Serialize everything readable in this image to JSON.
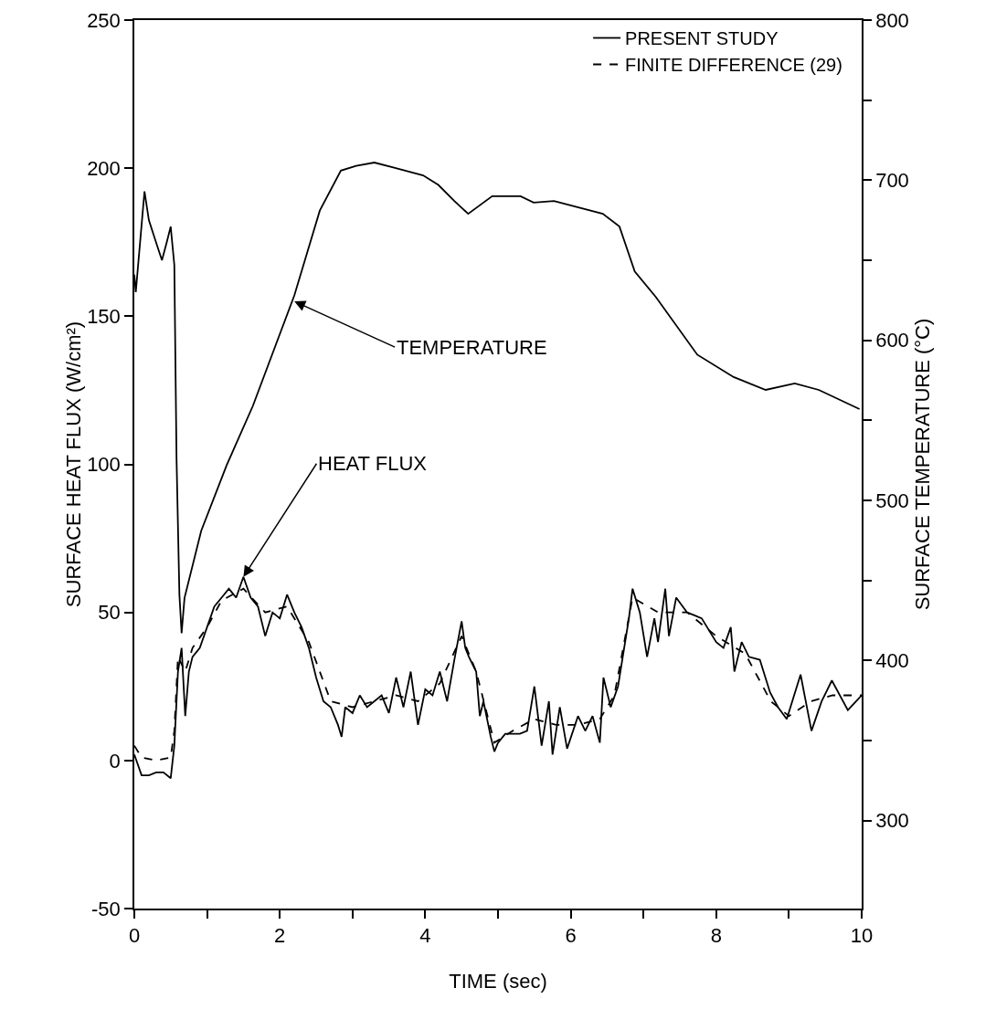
{
  "chart_data": {
    "type": "line",
    "xlabel": "TIME (sec)",
    "ylabel": "SURFACE HEAT FLUX (W/cm²)",
    "y2label": "SURFACE TEMPERATURE (°C)",
    "xlim": [
      0,
      10
    ],
    "xticks": [
      0,
      {
        "value": 1,
        "label": null
      },
      2,
      {
        "value": 3,
        "label": null
      },
      4,
      {
        "value": 5,
        "label": null
      },
      6,
      {
        "value": 7,
        "label": null
      },
      8,
      {
        "value": 9,
        "label": null
      },
      10
    ],
    "ylim": [
      -50,
      250
    ],
    "yticks": [
      -50,
      0,
      50,
      100,
      150,
      200,
      250
    ],
    "y2lim": [
      245,
      800
    ],
    "y2ticks": [
      300,
      {
        "value": 350,
        "label": null
      },
      400,
      {
        "value": 450,
        "label": null
      },
      500,
      {
        "value": 550,
        "label": null
      },
      600,
      {
        "value": 650,
        "label": null
      },
      700,
      {
        "value": 750,
        "label": null
      },
      800
    ],
    "grid": false,
    "legend": "top right",
    "marker": "none",
    "series": [
      {
        "name": "PRESENT STUDY",
        "color": "#000000",
        "line_style": "solid",
        "x": [
          0,
          0.1,
          0.2,
          0.3,
          0.4,
          0.5,
          0.55,
          0.6,
          0.65,
          0.7,
          0.75,
          0.8,
          0.9,
          1.0,
          1.1,
          1.2,
          1.3,
          1.4,
          1.5,
          1.6,
          1.7,
          1.8,
          1.9,
          2.0,
          2.1,
          2.2,
          2.3,
          2.4,
          2.5,
          2.6,
          2.7,
          2.8,
          2.85,
          2.9,
          3.0,
          3.1,
          3.2,
          3.3,
          3.4,
          3.5,
          3.6,
          3.7,
          3.8,
          3.9,
          4.0,
          4.1,
          4.2,
          4.3,
          4.4,
          4.5,
          4.55,
          4.6,
          4.7,
          4.75,
          4.8,
          4.9,
          4.95,
          5.0,
          5.1,
          5.2,
          5.3,
          5.4,
          5.5,
          5.6,
          5.7,
          5.75,
          5.85,
          5.95,
          6.1,
          6.2,
          6.3,
          6.4,
          6.45,
          6.55,
          6.65,
          6.8,
          6.85,
          6.95,
          7.05,
          7.15,
          7.2,
          7.3,
          7.35,
          7.45,
          7.6,
          7.8,
          8.0,
          8.1,
          8.2,
          8.25,
          8.35,
          8.45,
          8.6,
          8.74,
          8.85,
          8.97,
          9.16,
          9.31,
          9.45,
          9.59,
          9.81,
          10
        ],
        "values": [
          2,
          -5,
          -5,
          -4,
          -4,
          -6,
          5,
          30,
          38,
          15,
          30,
          35,
          38,
          45,
          52,
          55,
          58,
          55,
          62,
          55,
          52,
          42,
          50,
          48,
          56,
          50,
          45,
          38,
          28,
          20,
          18,
          12,
          8,
          18,
          16,
          22,
          18,
          20,
          22,
          16,
          28,
          18,
          30,
          12,
          24,
          22,
          30,
          20,
          34,
          47,
          38,
          35,
          30,
          15,
          20,
          8,
          3,
          6,
          9,
          9,
          9,
          10,
          25,
          5,
          20,
          2,
          18,
          4,
          15,
          10,
          15,
          6,
          28,
          18,
          25,
          48,
          58,
          50,
          35,
          48,
          40,
          58,
          42,
          55,
          50,
          48,
          40,
          38,
          45,
          30,
          40,
          35,
          34,
          23,
          18,
          14,
          29,
          10,
          20,
          27,
          17,
          22
        ]
      },
      {
        "name": "FINITE DIFFERENCE (29)",
        "color": "#000000",
        "line_style": "dashed",
        "x": [
          0,
          0.1,
          0.3,
          0.5,
          0.55,
          0.6,
          0.7,
          0.8,
          1.0,
          1.2,
          1.5,
          1.8,
          2.1,
          2.4,
          2.7,
          3.0,
          3.3,
          3.6,
          3.9,
          4.2,
          4.5,
          4.7,
          4.95,
          5.2,
          5.5,
          5.8,
          6.1,
          6.4,
          6.6,
          6.85,
          7.2,
          7.6,
          8.0,
          8.4,
          8.75,
          9.0,
          9.3,
          9.6,
          10
        ],
        "values": [
          5,
          1,
          0,
          1,
          10,
          35,
          30,
          38,
          45,
          54,
          58,
          50,
          52,
          40,
          20,
          18,
          20,
          22,
          20,
          26,
          42,
          30,
          6,
          10,
          14,
          12,
          12,
          14,
          22,
          55,
          50,
          50,
          42,
          36,
          20,
          15,
          20,
          22,
          22
        ]
      },
      {
        "color": "#000000",
        "line_style": "solid",
        "axis": "y2",
        "x": [
          0,
          0.02,
          0.14,
          0.2,
          0.3,
          0.38,
          0.45,
          0.5,
          0.55,
          0.58,
          0.62,
          0.65,
          0.69,
          0.92,
          1.27,
          1.63,
          2.2,
          2.55,
          2.84,
          3.05,
          3.3,
          3.56,
          3.97,
          4.18,
          4.4,
          4.59,
          4.92,
          5.31,
          5.49,
          5.77,
          6.44,
          6.67,
          6.88,
          7.17,
          7.74,
          8.24,
          8.68,
          9.08,
          9.41,
          9.97
        ],
        "values": [
          641,
          630,
          693,
          675,
          661,
          650,
          662,
          671,
          647,
          527,
          441,
          417,
          439,
          481,
          522,
          559,
          628,
          681,
          706,
          709,
          711,
          708,
          703,
          697,
          687,
          679,
          690,
          690,
          686,
          687,
          679,
          671,
          643,
          627,
          591,
          577,
          569,
          573,
          569,
          557
        ]
      }
    ],
    "annotations": [
      {
        "text": "TEMPERATURE",
        "x": 2.2,
        "y": 155
      },
      {
        "text": "HEAT FLUX",
        "x": 1.5,
        "y": 62
      }
    ]
  }
}
